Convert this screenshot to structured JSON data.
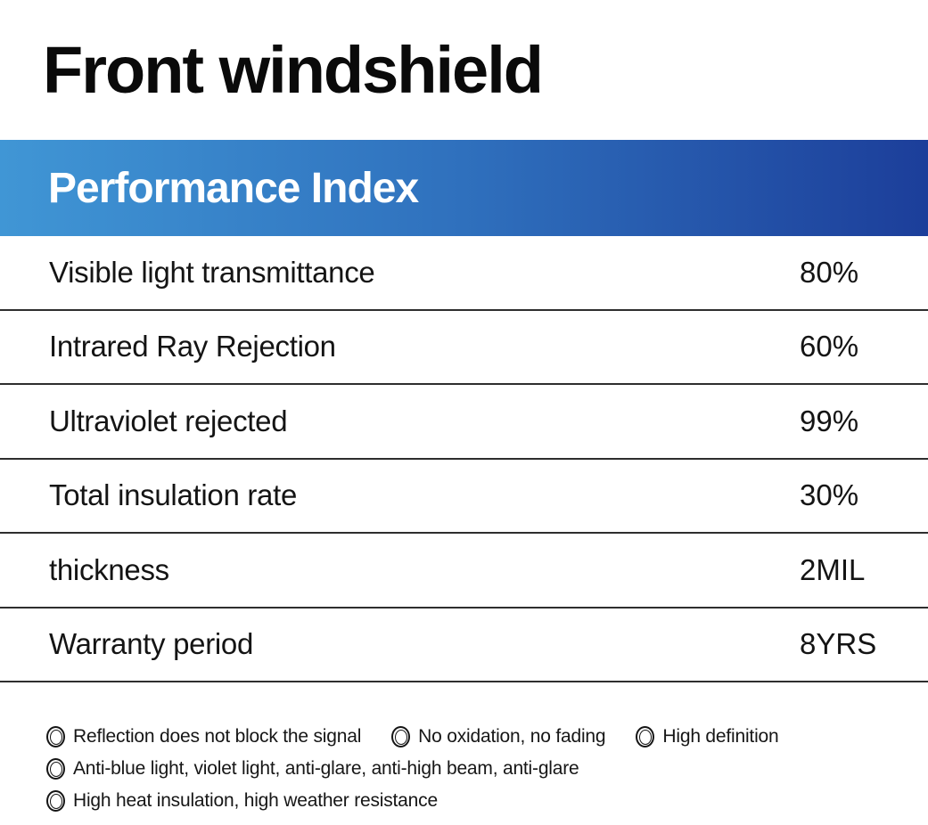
{
  "page": {
    "title": "Front windshield"
  },
  "performance": {
    "header": "Performance Index",
    "rows": [
      {
        "label": "Visible light transmittance",
        "value": "80%"
      },
      {
        "label": "Intrared Ray Rejection",
        "value": "60%"
      },
      {
        "label": "Ultraviolet rejected",
        "value": "99%"
      },
      {
        "label": "Total insulation rate",
        "value": "30%"
      },
      {
        "label": "thickness",
        "value": "2MIL"
      },
      {
        "label": "Warranty period",
        "value": "8YRS"
      }
    ]
  },
  "features": {
    "bullet_icon": "double-circle-icon",
    "lines": [
      [
        "Reflection does not block the signal",
        "No oxidation, no fading",
        "High definition"
      ],
      [
        "Anti-blue light, violet light, anti-glare, anti-high beam, anti-glare"
      ],
      [
        "High heat insulation, high weather resistance"
      ]
    ]
  },
  "colors": {
    "banner_gradient_start": "#4096d5",
    "banner_gradient_mid": "#2f70bd",
    "banner_gradient_end": "#1c3e9a",
    "divider": "#2e2e2e",
    "banner_text": "#ffffff",
    "body_text": "#121212"
  }
}
